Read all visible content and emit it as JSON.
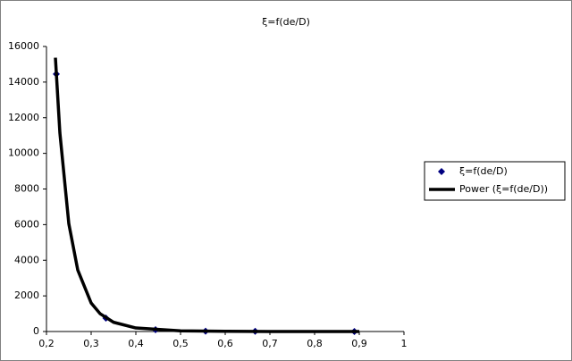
{
  "chart_data": {
    "type": "scatter",
    "title": "ξ=f(de/D)",
    "series": [
      {
        "name": "ξ=f(de/D)",
        "type": "scatter",
        "color": "#000080",
        "x": [
          0.222,
          0.333,
          0.444,
          0.556,
          0.667,
          0.889
        ],
        "values": [
          14450,
          750,
          100,
          20,
          10,
          2
        ]
      },
      {
        "name": "Power (ξ=f(de/D))",
        "type": "line",
        "color": "#000000",
        "x": [
          0.22,
          0.23,
          0.25,
          0.27,
          0.3,
          0.32,
          0.35,
          0.4,
          0.5,
          0.6,
          0.7,
          0.8,
          0.9
        ],
        "values": [
          15370,
          11150,
          6050,
          3450,
          1600,
          1000,
          520,
          200,
          40,
          10,
          3,
          1,
          0.5
        ]
      }
    ],
    "xlim": [
      0.2,
      1
    ],
    "xticks": [
      {
        "value": 0.2,
        "label": "0,2"
      },
      {
        "value": 0.3,
        "label": "0,3"
      },
      {
        "value": 0.4,
        "label": "0,4"
      },
      {
        "value": 0.5,
        "label": "0,5"
      },
      {
        "value": 0.6,
        "label": "0,6"
      },
      {
        "value": 0.7,
        "label": "0,7"
      },
      {
        "value": 0.8,
        "label": "0,8"
      },
      {
        "value": 0.9,
        "label": "0,9"
      },
      1
    ],
    "ylim": [
      0,
      16000
    ],
    "yticks": [
      0,
      2000,
      4000,
      6000,
      8000,
      10000,
      12000,
      14000,
      16000
    ],
    "grid": false,
    "legend": "right"
  }
}
